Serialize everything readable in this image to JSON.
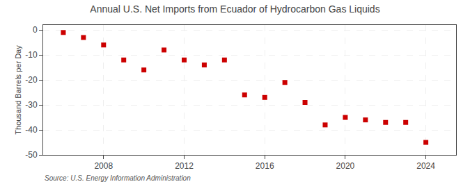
{
  "chart_data": {
    "type": "scatter",
    "title": "Annual U.S. Net Imports from Ecuador of Hydrocarbon Gas Liquids",
    "ylabel": "Thousand Barrels per Day",
    "annotations": [
      "Source: U.S. Energy Information Administration"
    ],
    "x": [
      2006,
      2007,
      2008,
      2009,
      2010,
      2011,
      2012,
      2013,
      2014,
      2015,
      2016,
      2017,
      2018,
      2019,
      2020,
      2021,
      2022,
      2023,
      2024
    ],
    "values": [
      -1.0,
      -3.0,
      -6.0,
      -12.0,
      -16.0,
      -8.0,
      -12.0,
      -14.0,
      -12.0,
      -26.0,
      -27.0,
      -21.0,
      -29.0,
      -38.0,
      -35.0,
      -36.0,
      -37.0,
      -37.0,
      -45.0
    ],
    "color": "#cc0000",
    "marker": "square",
    "ylim": [
      -50,
      2
    ],
    "yticks": [
      0,
      -10,
      -20,
      -30,
      -40,
      -50
    ],
    "xlim": [
      2005.0,
      2025.5
    ],
    "xticks": [
      2008,
      2012,
      2016,
      2020,
      2024
    ],
    "grid": true
  }
}
